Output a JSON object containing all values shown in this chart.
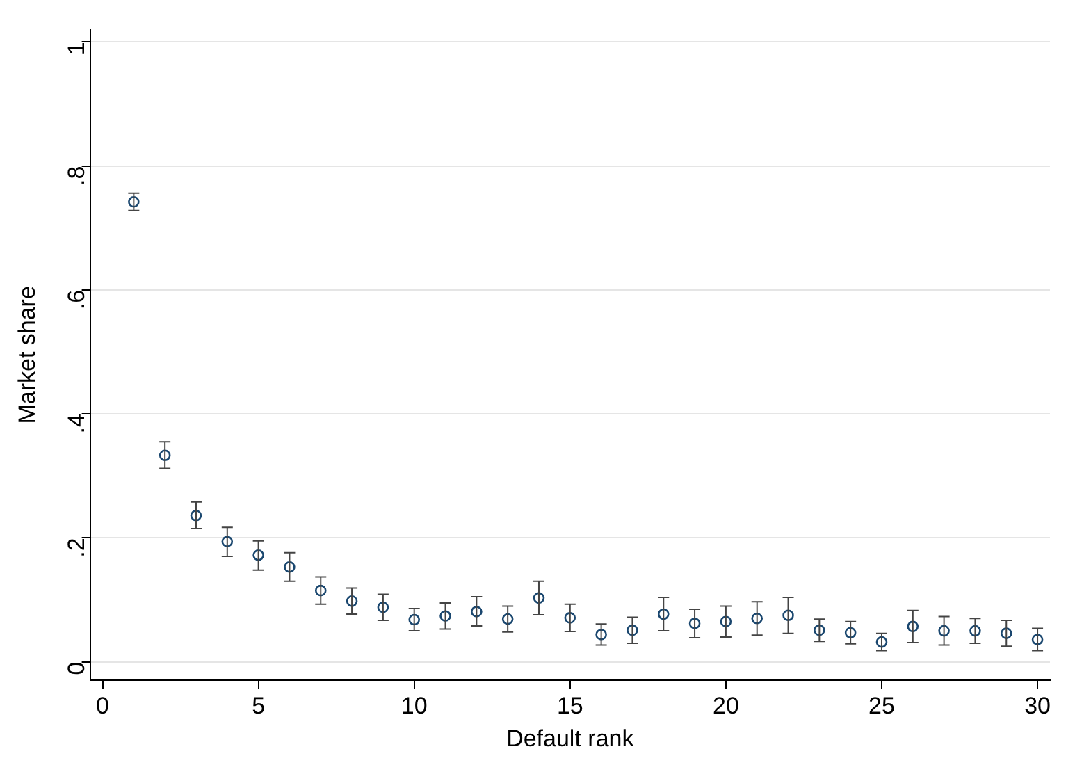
{
  "chart_data": {
    "type": "scatter",
    "xlabel": "Default rank",
    "ylabel": "Market share",
    "x": [
      1,
      2,
      3,
      4,
      5,
      6,
      7,
      8,
      9,
      10,
      11,
      12,
      13,
      14,
      15,
      16,
      17,
      18,
      19,
      20,
      21,
      22,
      23,
      24,
      25,
      26,
      27,
      28,
      29,
      30
    ],
    "values": [
      0.742,
      0.333,
      0.236,
      0.194,
      0.172,
      0.153,
      0.115,
      0.098,
      0.088,
      0.068,
      0.074,
      0.081,
      0.069,
      0.103,
      0.071,
      0.044,
      0.051,
      0.077,
      0.062,
      0.065,
      0.07,
      0.075,
      0.051,
      0.047,
      0.032,
      0.057,
      0.05,
      0.05,
      0.046,
      0.036
    ],
    "errors": [
      [
        0.728,
        0.756
      ],
      [
        0.312,
        0.355
      ],
      [
        0.215,
        0.258
      ],
      [
        0.17,
        0.217
      ],
      [
        0.148,
        0.195
      ],
      [
        0.13,
        0.176
      ],
      [
        0.093,
        0.137
      ],
      [
        0.077,
        0.119
      ],
      [
        0.067,
        0.109
      ],
      [
        0.05,
        0.086
      ],
      [
        0.053,
        0.095
      ],
      [
        0.058,
        0.105
      ],
      [
        0.048,
        0.09
      ],
      [
        0.076,
        0.13
      ],
      [
        0.049,
        0.093
      ],
      [
        0.027,
        0.061
      ],
      [
        0.03,
        0.072
      ],
      [
        0.05,
        0.104
      ],
      [
        0.039,
        0.085
      ],
      [
        0.04,
        0.09
      ],
      [
        0.043,
        0.097
      ],
      [
        0.046,
        0.104
      ],
      [
        0.033,
        0.069
      ],
      [
        0.029,
        0.065
      ],
      [
        0.018,
        0.046
      ],
      [
        0.031,
        0.083
      ],
      [
        0.027,
        0.073
      ],
      [
        0.03,
        0.07
      ],
      [
        0.025,
        0.067
      ],
      [
        0.018,
        0.054
      ]
    ],
    "color": "#1a476f",
    "marker": "circle",
    "grid": "y",
    "legend": false,
    "xlim": [
      -0.4,
      30.4
    ],
    "xticks": [
      0,
      5,
      10,
      15,
      20,
      25,
      30
    ],
    "ylim": [
      -0.03,
      1.02
    ],
    "yticks": [
      0,
      {
        "value": 0.2,
        "label": ".2"
      },
      {
        "value": 0.4,
        "label": ".4"
      },
      {
        "value": 0.6,
        "label": ".6"
      },
      {
        "value": 0.8,
        "label": ".8"
      },
      1
    ]
  }
}
